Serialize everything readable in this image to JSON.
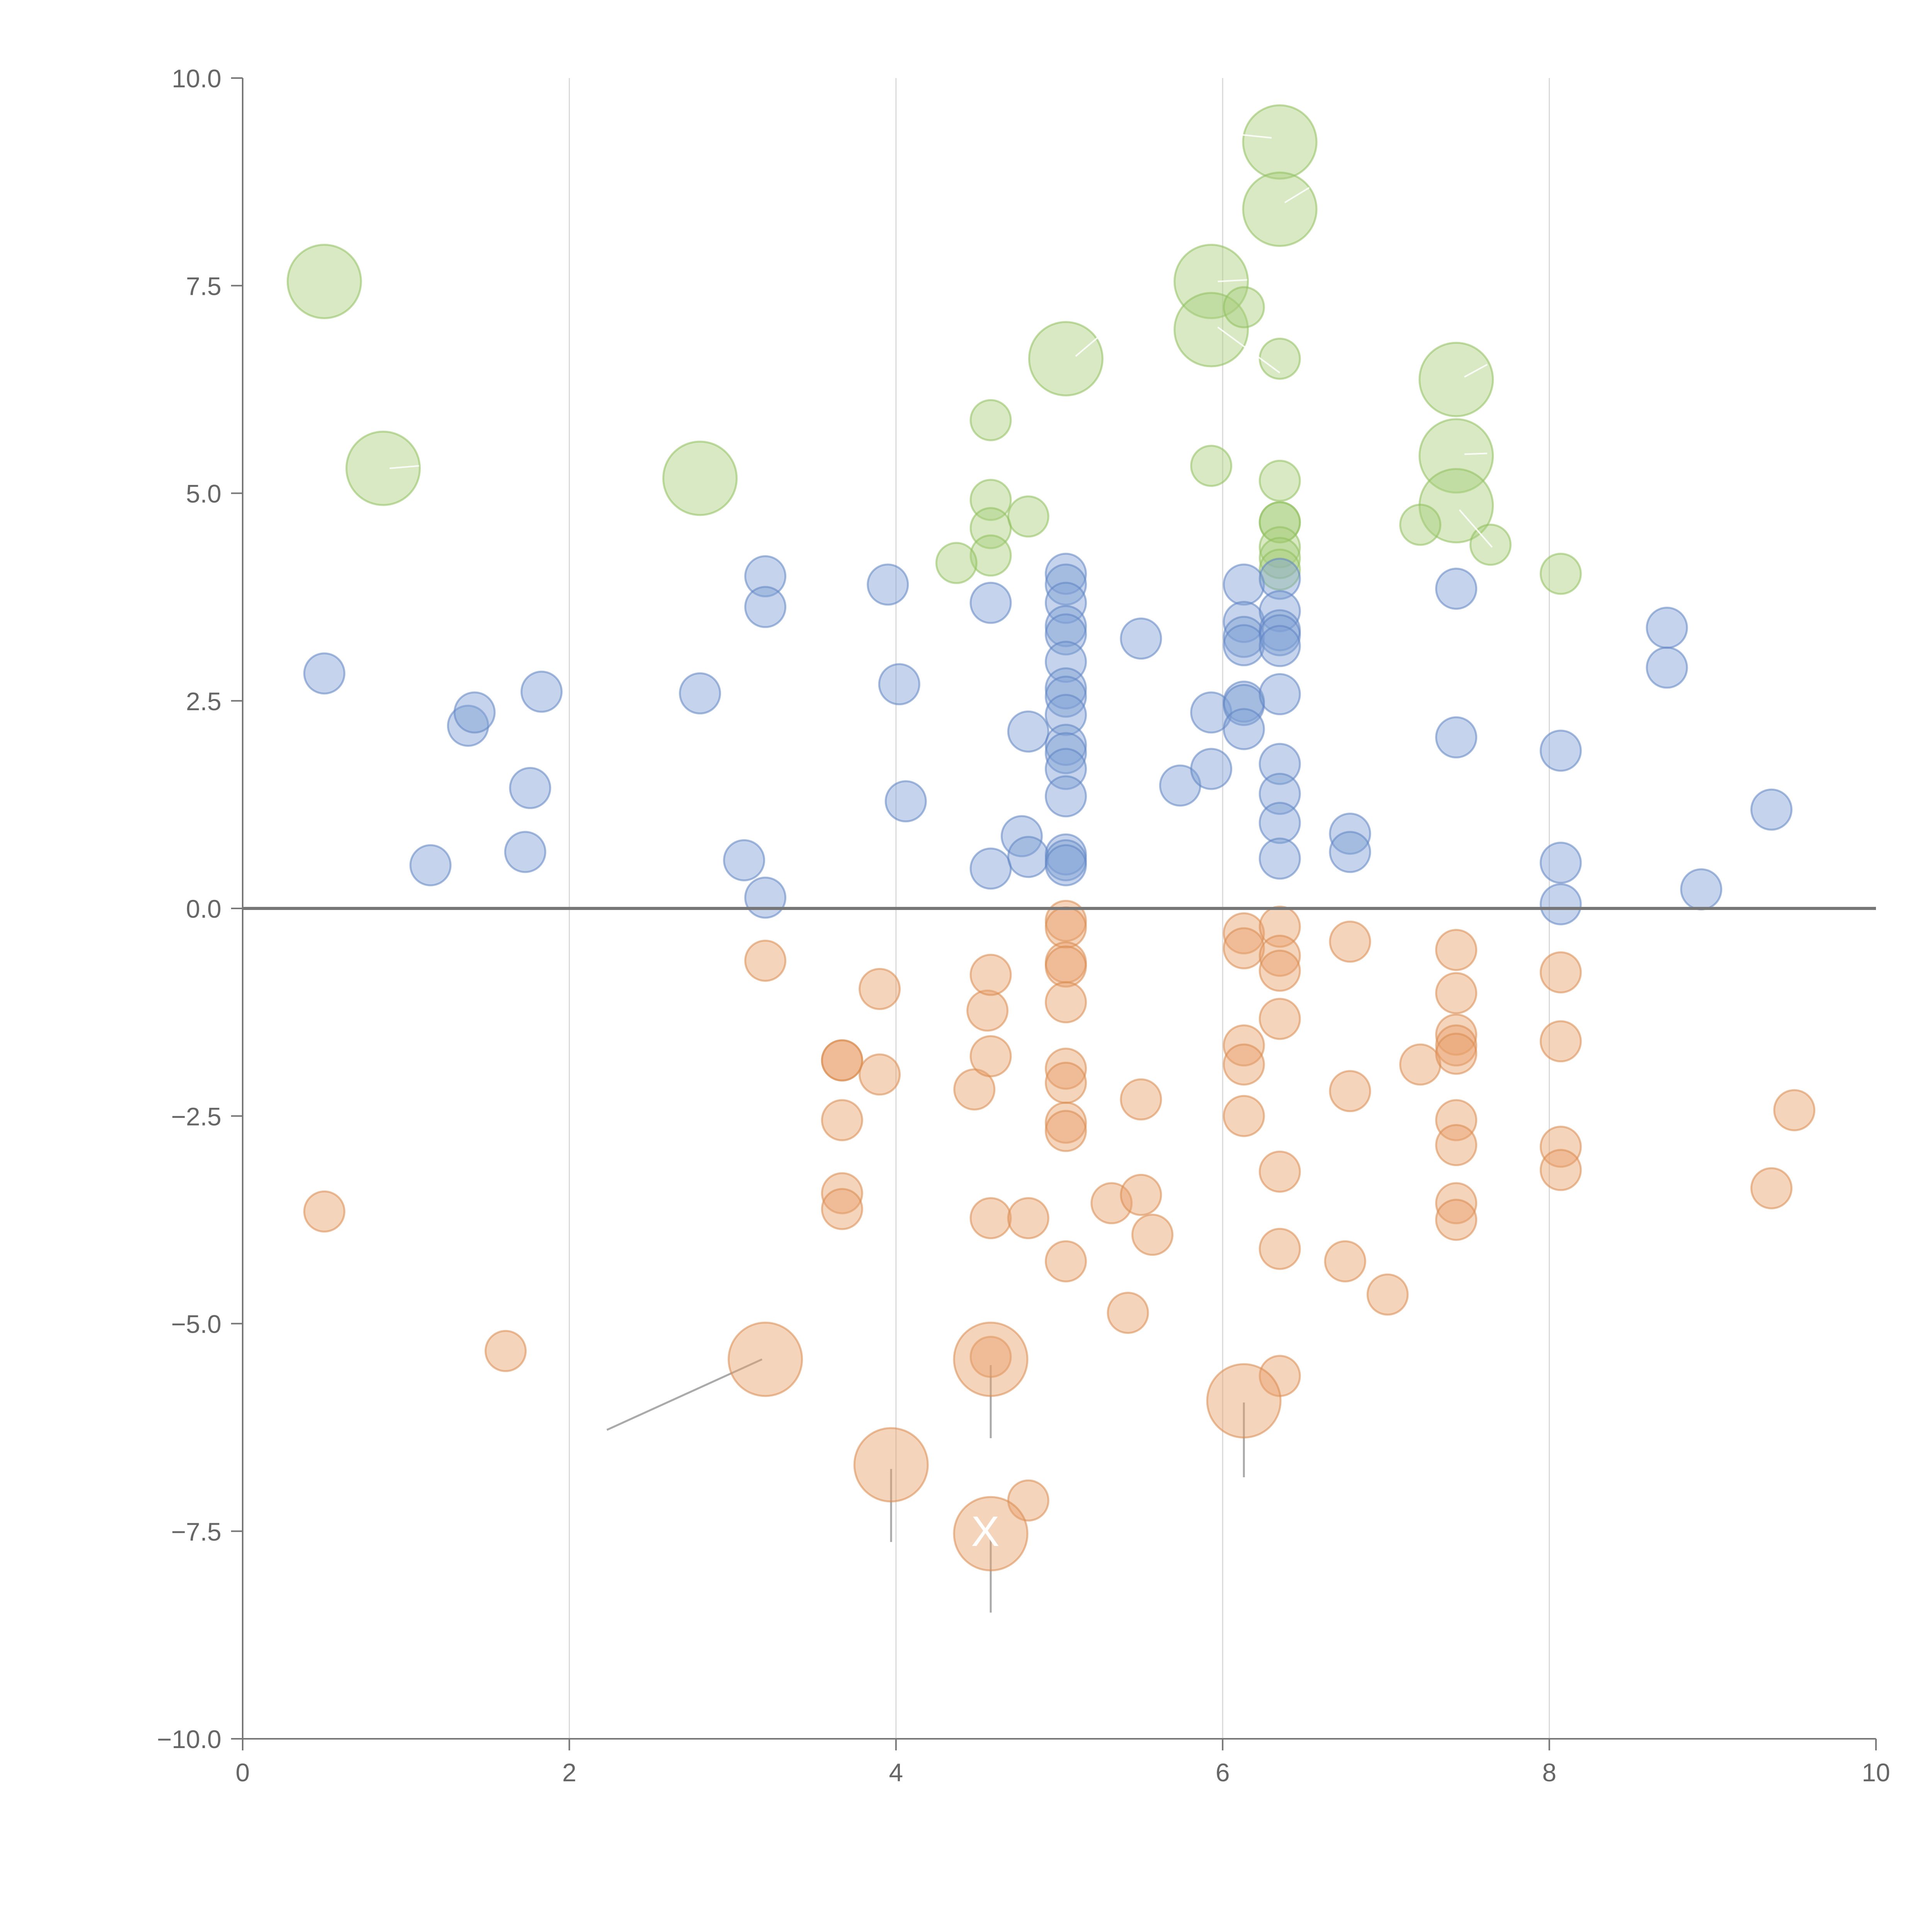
{
  "chart_data": {
    "type": "scatter",
    "title": "",
    "xlabel": "",
    "ylabel": "",
    "xlim": [
      0,
      10
    ],
    "ylim": [
      -10,
      10
    ],
    "x_ticks": [
      0,
      2,
      4,
      6,
      8,
      10
    ],
    "x_tick_labels": [
      "0",
      "2",
      "4",
      "6",
      "8",
      "10"
    ],
    "y_ticks": [
      -10,
      -7.5,
      -5,
      -2.5,
      0,
      2.5,
      5,
      7.5,
      10
    ],
    "y_tick_labels": [
      "−10.0",
      "−7.5",
      "−5.0",
      "−2.5",
      "0.0",
      "2.5",
      "5.0",
      "7.5",
      "10.0"
    ],
    "grid": "vertical",
    "reference_line_y": 0,
    "series": [
      {
        "name": "green",
        "color": "#a9cf7d",
        "stroke": "#8fbf5c",
        "points": [
          {
            "x": 0.5,
            "y": 7.55,
            "size": "large"
          },
          {
            "x": 0.86,
            "y": 5.3,
            "size": "large"
          },
          {
            "x": 2.8,
            "y": 5.18,
            "size": "large"
          },
          {
            "x": 5.04,
            "y": 6.62,
            "size": "large"
          },
          {
            "x": 5.93,
            "y": 7.55,
            "size": "large"
          },
          {
            "x": 5.93,
            "y": 6.97,
            "size": "large"
          },
          {
            "x": 6.35,
            "y": 9.23,
            "size": "large"
          },
          {
            "x": 6.35,
            "y": 8.42,
            "size": "large"
          },
          {
            "x": 7.43,
            "y": 6.37,
            "size": "large"
          },
          {
            "x": 7.43,
            "y": 5.45,
            "size": "large"
          },
          {
            "x": 7.43,
            "y": 4.85,
            "size": "large"
          },
          {
            "x": 4.58,
            "y": 5.88,
            "size": "small"
          },
          {
            "x": 4.58,
            "y": 4.92,
            "size": "small"
          },
          {
            "x": 4.58,
            "y": 4.58,
            "size": "small"
          },
          {
            "x": 4.58,
            "y": 4.25,
            "size": "small"
          },
          {
            "x": 4.37,
            "y": 4.16,
            "size": "small"
          },
          {
            "x": 4.81,
            "y": 4.72,
            "size": "small"
          },
          {
            "x": 5.93,
            "y": 5.33,
            "size": "small"
          },
          {
            "x": 6.13,
            "y": 7.24,
            "size": "small"
          },
          {
            "x": 6.35,
            "y": 6.62,
            "size": "small"
          },
          {
            "x": 6.35,
            "y": 5.15,
            "size": "small"
          },
          {
            "x": 6.35,
            "y": 4.65,
            "size": "small"
          },
          {
            "x": 6.35,
            "y": 4.65,
            "size": "small"
          },
          {
            "x": 6.35,
            "y": 4.35,
            "size": "small"
          },
          {
            "x": 6.35,
            "y": 4.22,
            "size": "small"
          },
          {
            "x": 6.35,
            "y": 4.08,
            "size": "small"
          },
          {
            "x": 7.21,
            "y": 4.62,
            "size": "small"
          },
          {
            "x": 7.64,
            "y": 4.38,
            "size": "small"
          },
          {
            "x": 8.07,
            "y": 4.03,
            "size": "small"
          }
        ]
      },
      {
        "name": "blue",
        "color": "#7fa0d4",
        "stroke": "#5f83c2",
        "points": [
          {
            "x": 0.5,
            "y": 2.83
          },
          {
            "x": 1.15,
            "y": 0.52
          },
          {
            "x": 1.38,
            "y": 2.2
          },
          {
            "x": 1.42,
            "y": 2.36
          },
          {
            "x": 1.73,
            "y": 0.68
          },
          {
            "x": 1.76,
            "y": 1.45
          },
          {
            "x": 1.83,
            "y": 2.61
          },
          {
            "x": 2.8,
            "y": 2.59
          },
          {
            "x": 3.07,
            "y": 0.58
          },
          {
            "x": 3.2,
            "y": 4.0
          },
          {
            "x": 3.2,
            "y": 3.63
          },
          {
            "x": 3.2,
            "y": 0.13
          },
          {
            "x": 3.95,
            "y": 3.9
          },
          {
            "x": 4.02,
            "y": 2.7
          },
          {
            "x": 4.06,
            "y": 1.29
          },
          {
            "x": 4.58,
            "y": 3.68
          },
          {
            "x": 4.58,
            "y": 0.48
          },
          {
            "x": 4.77,
            "y": 0.87
          },
          {
            "x": 4.81,
            "y": 2.13
          },
          {
            "x": 4.81,
            "y": 0.62
          },
          {
            "x": 5.04,
            "y": 4.03
          },
          {
            "x": 5.04,
            "y": 3.9
          },
          {
            "x": 5.04,
            "y": 3.68
          },
          {
            "x": 5.04,
            "y": 3.4
          },
          {
            "x": 5.04,
            "y": 3.3
          },
          {
            "x": 5.04,
            "y": 2.97
          },
          {
            "x": 5.04,
            "y": 2.65
          },
          {
            "x": 5.04,
            "y": 2.55
          },
          {
            "x": 5.04,
            "y": 2.33
          },
          {
            "x": 5.04,
            "y": 1.97
          },
          {
            "x": 5.04,
            "y": 1.87
          },
          {
            "x": 5.04,
            "y": 1.68
          },
          {
            "x": 5.04,
            "y": 1.35
          },
          {
            "x": 5.04,
            "y": 0.65
          },
          {
            "x": 5.04,
            "y": 0.58
          },
          {
            "x": 5.04,
            "y": 0.52
          },
          {
            "x": 5.5,
            "y": 3.25
          },
          {
            "x": 5.74,
            "y": 1.48
          },
          {
            "x": 5.93,
            "y": 2.36
          },
          {
            "x": 5.93,
            "y": 1.68
          },
          {
            "x": 6.13,
            "y": 3.9
          },
          {
            "x": 6.13,
            "y": 3.45
          },
          {
            "x": 6.13,
            "y": 3.27
          },
          {
            "x": 6.13,
            "y": 3.17
          },
          {
            "x": 6.13,
            "y": 2.49
          },
          {
            "x": 6.13,
            "y": 2.45
          },
          {
            "x": 6.13,
            "y": 2.16
          },
          {
            "x": 6.35,
            "y": 3.97
          },
          {
            "x": 6.35,
            "y": 3.58
          },
          {
            "x": 6.35,
            "y": 3.35
          },
          {
            "x": 6.35,
            "y": 3.29
          },
          {
            "x": 6.35,
            "y": 3.16
          },
          {
            "x": 6.35,
            "y": 2.58
          },
          {
            "x": 6.35,
            "y": 1.74
          },
          {
            "x": 6.35,
            "y": 1.38
          },
          {
            "x": 6.35,
            "y": 1.03
          },
          {
            "x": 6.35,
            "y": 0.6
          },
          {
            "x": 6.78,
            "y": 0.9
          },
          {
            "x": 6.78,
            "y": 0.68
          },
          {
            "x": 7.43,
            "y": 3.85
          },
          {
            "x": 7.43,
            "y": 2.06
          },
          {
            "x": 8.07,
            "y": 1.9
          },
          {
            "x": 8.07,
            "y": 0.55
          },
          {
            "x": 8.07,
            "y": 0.05
          },
          {
            "x": 8.72,
            "y": 3.38
          },
          {
            "x": 8.72,
            "y": 2.9
          },
          {
            "x": 8.93,
            "y": 0.23
          },
          {
            "x": 9.36,
            "y": 1.19
          }
        ]
      },
      {
        "name": "orange",
        "color": "#e8a06a",
        "stroke": "#d98a4f",
        "points": [
          {
            "x": 0.5,
            "y": -3.65
          },
          {
            "x": 1.61,
            "y": -5.33
          },
          {
            "x": 3.2,
            "y": -0.63
          },
          {
            "x": 3.67,
            "y": -1.83
          },
          {
            "x": 3.67,
            "y": -1.83
          },
          {
            "x": 3.67,
            "y": -2.55
          },
          {
            "x": 3.67,
            "y": -3.43
          },
          {
            "x": 3.67,
            "y": -3.62
          },
          {
            "x": 3.9,
            "y": -0.97
          },
          {
            "x": 3.9,
            "y": -2.0
          },
          {
            "x": 4.48,
            "y": -2.18
          },
          {
            "x": 4.56,
            "y": -1.23
          },
          {
            "x": 4.58,
            "y": -0.8
          },
          {
            "x": 4.58,
            "y": -1.78
          },
          {
            "x": 4.58,
            "y": -3.73
          },
          {
            "x": 4.58,
            "y": -5.4
          },
          {
            "x": 4.81,
            "y": -3.73
          },
          {
            "x": 4.81,
            "y": -7.13
          },
          {
            "x": 5.04,
            "y": -0.15
          },
          {
            "x": 5.04,
            "y": -0.23
          },
          {
            "x": 5.04,
            "y": -0.65
          },
          {
            "x": 5.04,
            "y": -0.7
          },
          {
            "x": 5.04,
            "y": -1.13
          },
          {
            "x": 5.04,
            "y": -1.93
          },
          {
            "x": 5.04,
            "y": -2.1
          },
          {
            "x": 5.04,
            "y": -2.58
          },
          {
            "x": 5.04,
            "y": -2.68
          },
          {
            "x": 5.04,
            "y": -4.25
          },
          {
            "x": 5.32,
            "y": -3.55
          },
          {
            "x": 5.42,
            "y": -4.87
          },
          {
            "x": 5.5,
            "y": -2.3
          },
          {
            "x": 5.5,
            "y": -3.45
          },
          {
            "x": 5.57,
            "y": -3.93
          },
          {
            "x": 6.13,
            "y": -0.3
          },
          {
            "x": 6.13,
            "y": -0.48
          },
          {
            "x": 6.13,
            "y": -1.65
          },
          {
            "x": 6.13,
            "y": -1.88
          },
          {
            "x": 6.13,
            "y": -2.5
          },
          {
            "x": 6.35,
            "y": -0.22
          },
          {
            "x": 6.35,
            "y": -0.57
          },
          {
            "x": 6.35,
            "y": -0.75
          },
          {
            "x": 6.35,
            "y": -1.33
          },
          {
            "x": 6.35,
            "y": -3.17
          },
          {
            "x": 6.35,
            "y": -4.1
          },
          {
            "x": 6.35,
            "y": -5.63
          },
          {
            "x": 6.75,
            "y": -4.25
          },
          {
            "x": 6.78,
            "y": -0.4
          },
          {
            "x": 6.78,
            "y": -2.2
          },
          {
            "x": 7.01,
            "y": -4.65
          },
          {
            "x": 7.21,
            "y": -1.88
          },
          {
            "x": 7.43,
            "y": -0.5
          },
          {
            "x": 7.43,
            "y": -1.02
          },
          {
            "x": 7.43,
            "y": -1.52
          },
          {
            "x": 7.43,
            "y": -1.65
          },
          {
            "x": 7.43,
            "y": -1.75
          },
          {
            "x": 7.43,
            "y": -2.55
          },
          {
            "x": 7.43,
            "y": -2.85
          },
          {
            "x": 7.43,
            "y": -3.55
          },
          {
            "x": 7.43,
            "y": -3.75
          },
          {
            "x": 8.07,
            "y": -0.77
          },
          {
            "x": 8.07,
            "y": -1.6
          },
          {
            "x": 8.07,
            "y": -2.87
          },
          {
            "x": 8.07,
            "y": -3.15
          },
          {
            "x": 9.36,
            "y": -3.37
          },
          {
            "x": 9.5,
            "y": -2.43
          },
          {
            "x": 3.2,
            "y": -5.43,
            "size": "large"
          },
          {
            "x": 3.97,
            "y": -6.7,
            "size": "large"
          },
          {
            "x": 4.58,
            "y": -5.43,
            "size": "large"
          },
          {
            "x": 4.58,
            "y": -7.53,
            "size": "large"
          },
          {
            "x": 6.13,
            "y": -5.93,
            "size": "large"
          }
        ]
      }
    ],
    "annotations": [
      {
        "text": "X",
        "x": 4.46,
        "y": -7.5
      }
    ]
  }
}
